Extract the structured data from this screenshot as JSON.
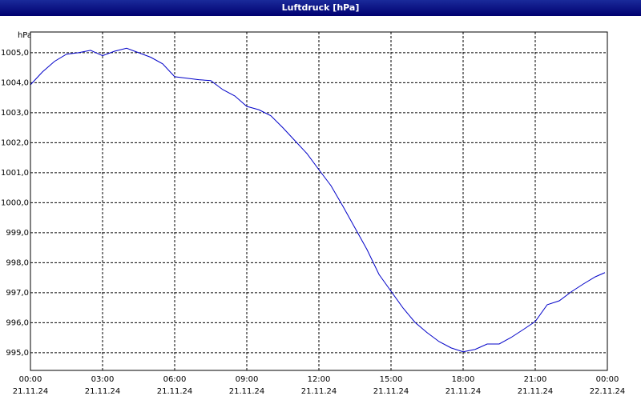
{
  "chart_data": {
    "type": "line",
    "title": "Luftdruck [hPa]",
    "y_label": "hPa",
    "x": [
      0,
      0.5,
      1,
      1.5,
      2,
      2.5,
      3,
      3.5,
      4,
      4.5,
      5,
      5.5,
      6,
      6.5,
      7,
      7.5,
      8,
      8.5,
      9,
      9.5,
      10,
      10.5,
      11,
      11.5,
      12,
      12.5,
      13,
      13.5,
      14,
      14.5,
      15,
      15.5,
      16,
      16.5,
      17,
      17.5,
      18,
      18.5,
      19,
      19.5,
      20,
      20.5,
      21,
      21.5,
      22,
      22.5,
      23,
      23.5,
      23.9
    ],
    "series": [
      {
        "name": "Luftdruck",
        "color": "#0000c8",
        "values": [
          1003.93,
          1004.36,
          1004.71,
          1004.95,
          1005.0,
          1005.08,
          1004.9,
          1005.05,
          1005.15,
          1005.0,
          1004.85,
          1004.63,
          1004.2,
          1004.15,
          1004.1,
          1004.07,
          1003.77,
          1003.56,
          1003.21,
          1003.1,
          1002.9,
          1002.5,
          1002.07,
          1001.64,
          1001.1,
          1000.57,
          999.88,
          999.16,
          998.44,
          997.61,
          997.05,
          996.49,
          996.01,
          995.67,
          995.37,
          995.16,
          995.03,
          995.11,
          995.29,
          995.29,
          995.51,
          995.77,
          996.04,
          996.6,
          996.73,
          997.03,
          997.29,
          997.53,
          997.67
        ]
      }
    ],
    "xlim": [
      0,
      24
    ],
    "xticks": [
      {
        "value": 0,
        "label": "00:00"
      },
      {
        "value": 3,
        "label": "03:00"
      },
      {
        "value": 6,
        "label": "06:00"
      },
      {
        "value": 9,
        "label": "09:00"
      },
      {
        "value": 12,
        "label": "12:00"
      },
      {
        "value": 15,
        "label": "15:00"
      },
      {
        "value": 18,
        "label": "18:00"
      },
      {
        "value": 21,
        "label": "21:00"
      },
      {
        "value": 24,
        "label": "00:00"
      }
    ],
    "xtick_dates": [
      "21.11.24",
      "21.11.24",
      "21.11.24",
      "21.11.24",
      "21.11.24",
      "21.11.24",
      "21.11.24",
      "21.11.24",
      "22.11.24"
    ],
    "ylim": [
      994.41,
      1005.69
    ],
    "yticks": [
      {
        "value": 995,
        "label": "995,0"
      },
      {
        "value": 996,
        "label": "996,0"
      },
      {
        "value": 997,
        "label": "997,0"
      },
      {
        "value": 998,
        "label": "998,0"
      },
      {
        "value": 999,
        "label": "999,0"
      },
      {
        "value": 1000,
        "label": "1000,0"
      },
      {
        "value": 1001,
        "label": "1001,0"
      },
      {
        "value": 1002,
        "label": "1002,0"
      },
      {
        "value": 1003,
        "label": "1003,0"
      },
      {
        "value": 1004,
        "label": "1004,0"
      },
      {
        "value": 1005,
        "label": "1005,0"
      }
    ],
    "grid": true
  }
}
